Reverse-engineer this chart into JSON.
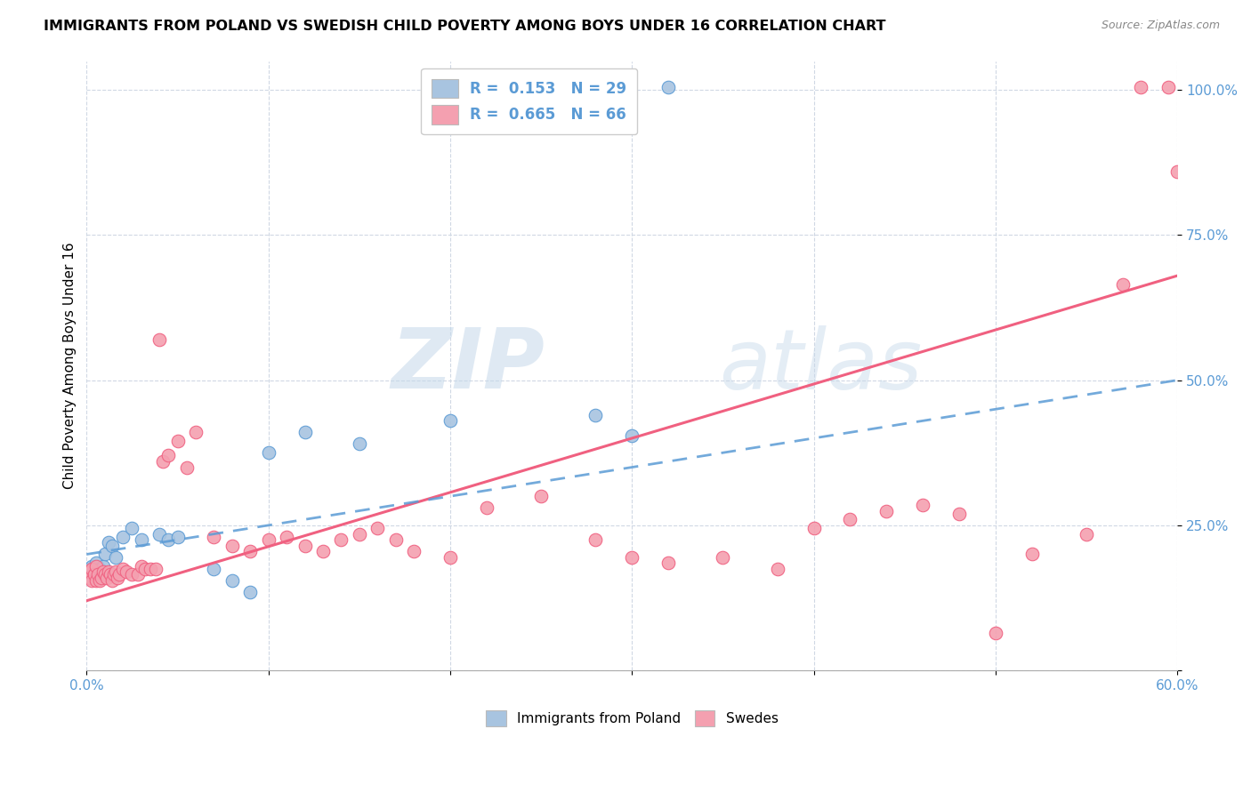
{
  "title": "IMMIGRANTS FROM POLAND VS SWEDISH CHILD POVERTY AMONG BOYS UNDER 16 CORRELATION CHART",
  "source": "Source: ZipAtlas.com",
  "ylabel": "Child Poverty Among Boys Under 16",
  "color_blue": "#a8c4e0",
  "color_pink": "#f4a0b0",
  "line_blue": "#5b9bd5",
  "line_pink": "#f06080",
  "watermark_zip": "ZIP",
  "watermark_atlas": "atlas",
  "xlim": [
    0.0,
    0.6
  ],
  "ylim": [
    0.0,
    1.05
  ],
  "pink_line_x0": 0.0,
  "pink_line_y0": 0.12,
  "pink_line_x1": 0.6,
  "pink_line_y1": 0.68,
  "blue_line_x0": 0.0,
  "blue_line_y0": 0.2,
  "blue_line_x1": 0.6,
  "blue_line_y1": 0.5,
  "poland_x": [
    0.001,
    0.002,
    0.003,
    0.004,
    0.005,
    0.006,
    0.007,
    0.008,
    0.009,
    0.01,
    0.012,
    0.014,
    0.016,
    0.02,
    0.025,
    0.03,
    0.04,
    0.045,
    0.05,
    0.07,
    0.08,
    0.09,
    0.1,
    0.12,
    0.15,
    0.2,
    0.28,
    0.3,
    0.32
  ],
  "poland_y": [
    0.175,
    0.165,
    0.18,
    0.17,
    0.185,
    0.16,
    0.175,
    0.165,
    0.18,
    0.2,
    0.22,
    0.215,
    0.195,
    0.23,
    0.245,
    0.225,
    0.235,
    0.225,
    0.23,
    0.175,
    0.155,
    0.135,
    0.375,
    0.41,
    0.39,
    0.43,
    0.44,
    0.405,
    1.005
  ],
  "swedes_x": [
    0.001,
    0.002,
    0.003,
    0.003,
    0.004,
    0.005,
    0.005,
    0.006,
    0.007,
    0.008,
    0.009,
    0.01,
    0.011,
    0.012,
    0.013,
    0.014,
    0.015,
    0.016,
    0.017,
    0.018,
    0.02,
    0.022,
    0.025,
    0.028,
    0.03,
    0.032,
    0.035,
    0.038,
    0.04,
    0.042,
    0.045,
    0.05,
    0.055,
    0.06,
    0.07,
    0.08,
    0.09,
    0.1,
    0.11,
    0.12,
    0.13,
    0.14,
    0.15,
    0.16,
    0.17,
    0.18,
    0.2,
    0.22,
    0.25,
    0.28,
    0.3,
    0.32,
    0.35,
    0.38,
    0.4,
    0.42,
    0.44,
    0.46,
    0.48,
    0.5,
    0.52,
    0.55,
    0.57,
    0.58,
    0.595,
    0.6
  ],
  "swedes_y": [
    0.17,
    0.16,
    0.155,
    0.175,
    0.165,
    0.155,
    0.18,
    0.165,
    0.155,
    0.16,
    0.17,
    0.165,
    0.16,
    0.17,
    0.165,
    0.155,
    0.165,
    0.17,
    0.16,
    0.165,
    0.175,
    0.17,
    0.165,
    0.165,
    0.18,
    0.175,
    0.175,
    0.175,
    0.57,
    0.36,
    0.37,
    0.395,
    0.35,
    0.41,
    0.23,
    0.215,
    0.205,
    0.225,
    0.23,
    0.215,
    0.205,
    0.225,
    0.235,
    0.245,
    0.225,
    0.205,
    0.195,
    0.28,
    0.3,
    0.225,
    0.195,
    0.185,
    0.195,
    0.175,
    0.245,
    0.26,
    0.275,
    0.285,
    0.27,
    0.065,
    0.2,
    0.235,
    0.665,
    1.005,
    1.005,
    0.86
  ]
}
